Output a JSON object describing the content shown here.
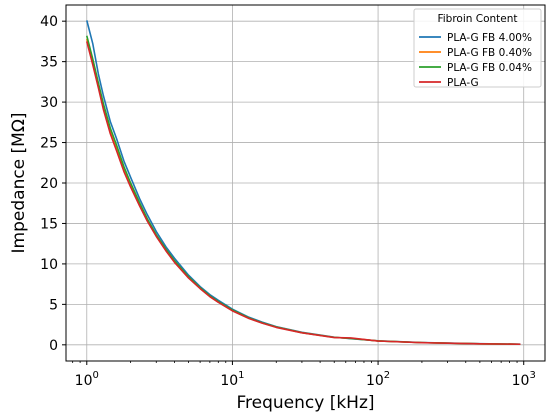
{
  "chart_data": {
    "type": "line",
    "xlabel": "Frequency [kHz]",
    "ylabel": "Impedance [MΩ]",
    "xscale": "log",
    "xlim": [
      0.72,
      1400
    ],
    "ylim": [
      -2,
      42
    ],
    "grid": true,
    "x_ticks": [
      {
        "value": 1,
        "base": "10",
        "exp": "0"
      },
      {
        "value": 10,
        "base": "10",
        "exp": "1"
      },
      {
        "value": 100,
        "base": "10",
        "exp": "2"
      },
      {
        "value": 1000,
        "base": "10",
        "exp": "3"
      }
    ],
    "y_ticks": [
      0,
      5,
      10,
      15,
      20,
      25,
      30,
      35,
      40
    ],
    "legend": {
      "title": "Fibroin Content",
      "placement": "upper right"
    },
    "series": [
      {
        "name": "PLA-G FB 4.00%",
        "color": "#1f77b4",
        "x": [
          1,
          1.1,
          1.2,
          1.3,
          1.45,
          1.6,
          1.8,
          2,
          2.3,
          2.6,
          3,
          3.5,
          4,
          5,
          6,
          7,
          8,
          10,
          13,
          16,
          20,
          30,
          50,
          65,
          100,
          200,
          500,
          950
        ],
        "y": [
          40.1,
          37.2,
          33.5,
          30.8,
          27.6,
          25.5,
          22.7,
          20.7,
          18.1,
          16.1,
          14.0,
          12.1,
          10.7,
          8.6,
          7.2,
          6.2,
          5.5,
          4.4,
          3.4,
          2.8,
          2.25,
          1.55,
          0.95,
          0.75,
          0.5,
          0.28,
          0.14,
          0.08
        ]
      },
      {
        "name": "PLA-G FB 0.40%",
        "color": "#ff7f0e",
        "x": [
          1,
          1.1,
          1.2,
          1.3,
          1.45,
          1.6,
          1.8,
          2,
          2.3,
          2.6,
          3,
          3.5,
          4,
          5,
          6,
          7,
          8,
          10,
          13,
          16,
          20,
          30,
          50,
          65,
          100,
          200,
          500,
          950
        ],
        "y": [
          37.8,
          34.8,
          32.0,
          29.4,
          26.4,
          24.2,
          21.7,
          19.8,
          17.4,
          15.5,
          13.5,
          11.7,
          10.3,
          8.35,
          7.0,
          6.0,
          5.3,
          4.25,
          3.3,
          2.7,
          2.2,
          1.5,
          0.92,
          0.8,
          0.48,
          0.27,
          0.13,
          0.07
        ]
      },
      {
        "name": "PLA-G FB 0.04%",
        "color": "#2ca02c",
        "x": [
          1,
          1.1,
          1.2,
          1.3,
          1.45,
          1.6,
          1.8,
          2,
          2.3,
          2.6,
          3,
          3.5,
          4,
          5,
          6,
          7,
          8,
          10,
          13,
          16,
          20,
          30,
          50,
          65,
          100,
          200,
          500,
          950
        ],
        "y": [
          38.2,
          35.3,
          32.4,
          29.8,
          26.8,
          24.7,
          22.0,
          20.0,
          17.6,
          15.6,
          13.6,
          11.8,
          10.4,
          8.4,
          7.05,
          6.05,
          5.35,
          4.3,
          3.32,
          2.72,
          2.2,
          1.5,
          0.92,
          0.78,
          0.48,
          0.27,
          0.13,
          0.07
        ]
      },
      {
        "name": "PLA-G",
        "color": "#d62728",
        "x": [
          1,
          1.1,
          1.2,
          1.3,
          1.45,
          1.6,
          1.8,
          2,
          2.3,
          2.6,
          3,
          3.5,
          4,
          5,
          6,
          7,
          8,
          10,
          13,
          16,
          20,
          30,
          50,
          65,
          100,
          200,
          500,
          950
        ],
        "y": [
          37.5,
          34.6,
          31.8,
          29.1,
          26.1,
          24.0,
          21.4,
          19.5,
          17.2,
          15.3,
          13.4,
          11.6,
          10.2,
          8.25,
          6.95,
          5.95,
          5.25,
          4.2,
          3.25,
          2.68,
          2.15,
          1.48,
          0.9,
          0.85,
          0.47,
          0.26,
          0.13,
          0.07
        ]
      }
    ]
  }
}
